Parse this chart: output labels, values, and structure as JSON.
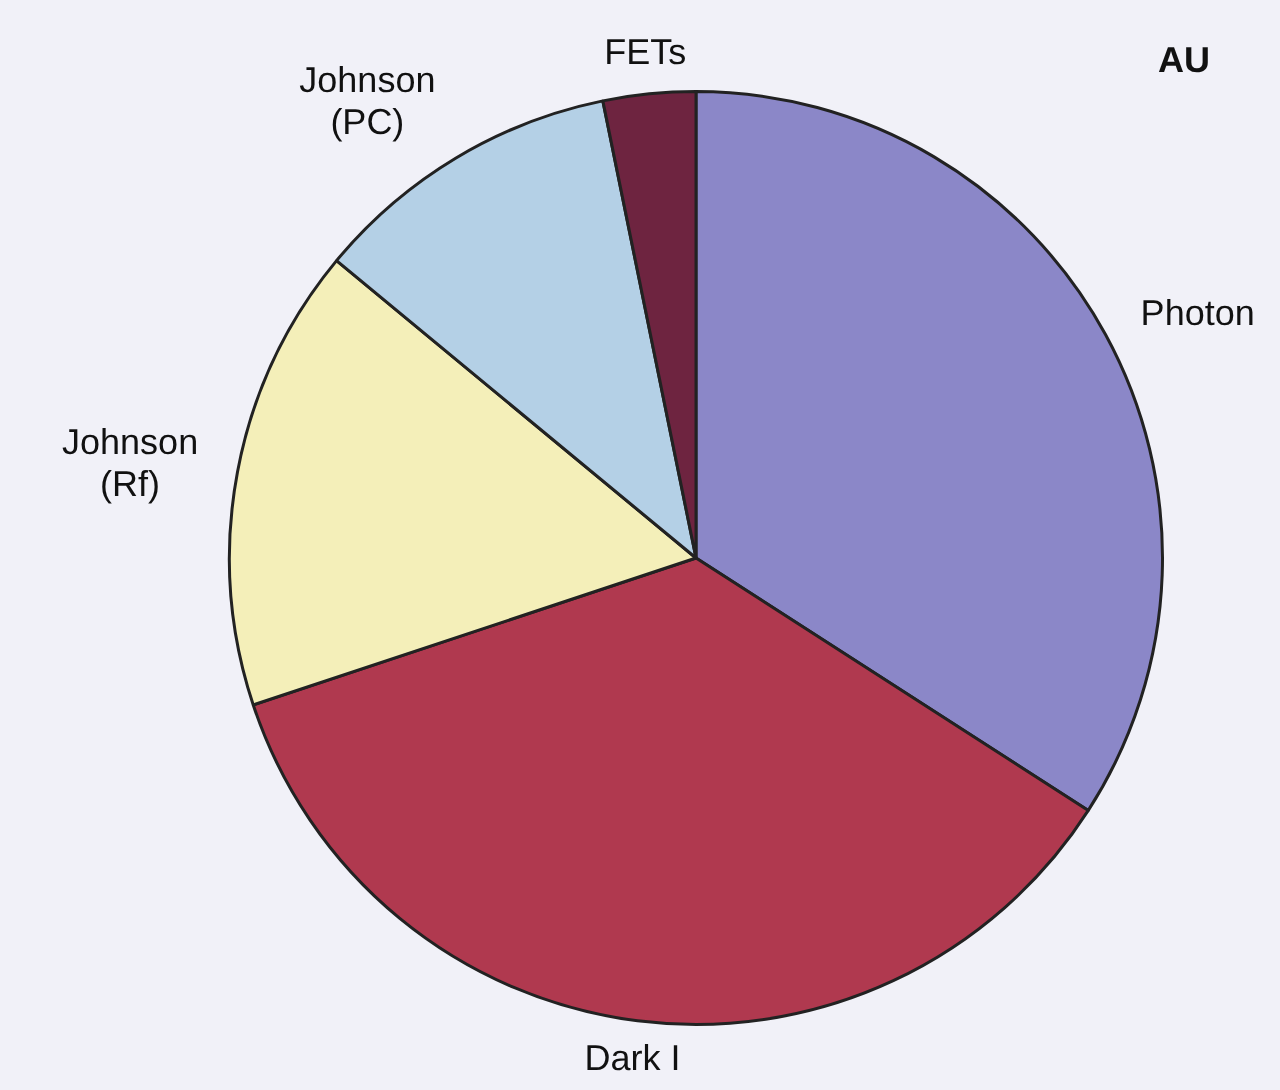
{
  "chart_data": {
    "type": "pie",
    "title": "AU",
    "categories": [
      "Photon",
      "Dark I",
      "Johnson (Rf)",
      "Johnson (PC)",
      "FETs"
    ],
    "values": [
      34.1,
      35.8,
      16.1,
      10.8,
      3.2
    ],
    "colors": [
      "#8b87c8",
      "#b0394f",
      "#f4efb9",
      "#b4d0e6",
      "#6e2440"
    ],
    "legend": false
  }
}
